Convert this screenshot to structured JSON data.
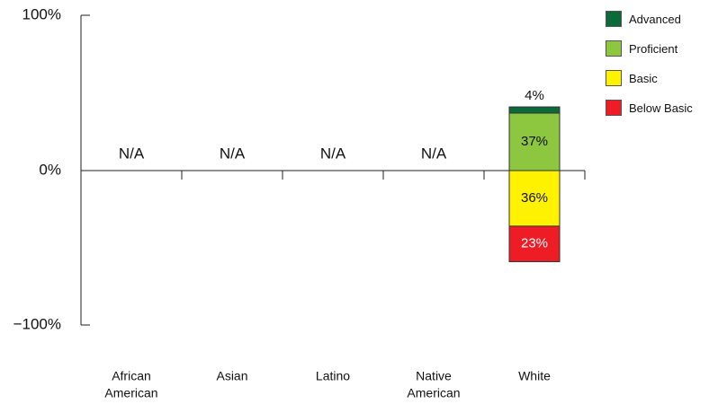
{
  "chart_data": {
    "type": "bar",
    "stacked": "diverging",
    "categories": [
      "African American",
      "Asian",
      "Latino",
      "Native American",
      "White"
    ],
    "y_ticks": [
      "100%",
      "0%",
      "−100%"
    ],
    "ylim": [
      -100,
      100
    ],
    "series": [
      {
        "name": "Advanced",
        "color": "#0b6a3a",
        "direction": "up",
        "values": [
          null,
          null,
          null,
          null,
          4
        ]
      },
      {
        "name": "Proficient",
        "color": "#8dc63f",
        "direction": "up",
        "values": [
          null,
          null,
          null,
          null,
          37
        ]
      },
      {
        "name": "Basic",
        "color": "#fff200",
        "direction": "down",
        "values": [
          null,
          null,
          null,
          null,
          36
        ]
      },
      {
        "name": "Below Basic",
        "color": "#ee1c25",
        "direction": "down",
        "values": [
          null,
          null,
          null,
          null,
          23
        ]
      }
    ],
    "na_label": "N/A",
    "data_labels": {
      "Advanced": "4%",
      "Proficient": "37%",
      "Basic": "36%",
      "Below Basic": "23%"
    },
    "legend_position": "top-right",
    "grid": false
  }
}
